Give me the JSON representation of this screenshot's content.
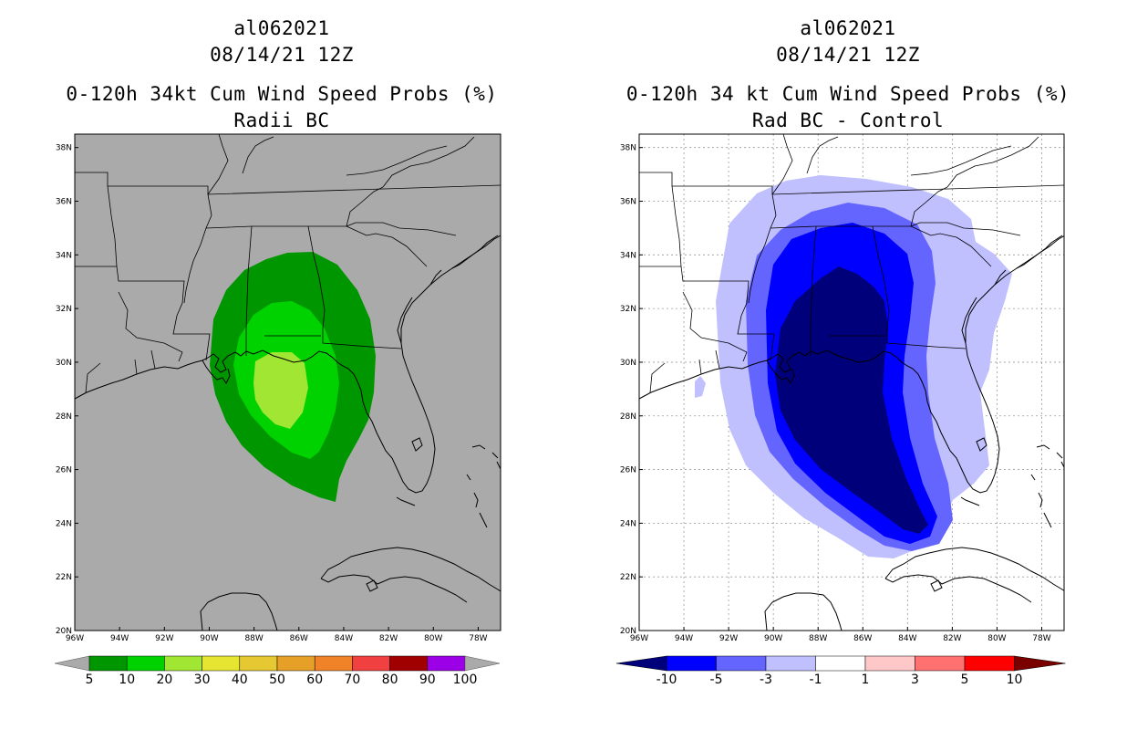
{
  "left_panel": {
    "storm_id": "al062021",
    "datetime": "08/14/21 12Z",
    "title": "0-120h 34kt Cum Wind Speed Probs (%)",
    "subtitle": "Radii BC"
  },
  "right_panel": {
    "storm_id": "al062021",
    "datetime": "08/14/21 12Z",
    "title": "0-120h 34 kt Cum Wind Speed Probs (%)",
    "subtitle": "Rad BC - Control"
  },
  "lon_labels": [
    "96W",
    "94W",
    "92W",
    "90W",
    "88W",
    "86W",
    "84W",
    "82W",
    "80W",
    "78W"
  ],
  "lat_labels": [
    "20N",
    "22N",
    "24N",
    "26N",
    "28N",
    "30N",
    "32N",
    "34N",
    "36N",
    "38N"
  ],
  "left_colorbar": {
    "colors": [
      "#009600",
      "#00d200",
      "#a0e632",
      "#e6e632",
      "#e6c832",
      "#e6a028",
      "#f08228",
      "#f04040",
      "#a00000",
      "#9b00e6"
    ],
    "end_color": "#aaaaaa",
    "labels": [
      "5",
      "10",
      "20",
      "30",
      "40",
      "50",
      "60",
      "70",
      "80",
      "90",
      "100"
    ]
  },
  "right_colorbar": {
    "colors": [
      "#0000ff",
      "#6464ff",
      "#c0c0ff",
      "#ffffff",
      "#ffc8c8",
      "#ff7070",
      "#ff0000"
    ],
    "low_color": "#00007a",
    "high_color": "#7a0000",
    "labels": [
      "-10",
      "-5",
      "-3",
      "-1",
      "1",
      "3",
      "5",
      "10"
    ]
  }
}
